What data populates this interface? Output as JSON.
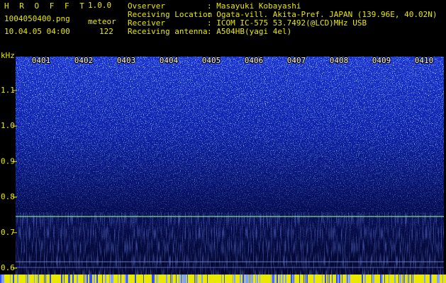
{
  "header": {
    "app_name": "H R O F F T",
    "version": "1.0.0",
    "file_name": "1004050400.png",
    "date_time": "10.04.05 04:00",
    "count_label": "meteor",
    "count": "122",
    "fields": [
      {
        "label": "Ovserver",
        "value": ": Masayuki Kobayashi"
      },
      {
        "label": "Receiving Location",
        "value": ": Ogata-vill. Akita-Pref. JAPAN (139.96E, 40.02N)"
      },
      {
        "label": "Receiver",
        "value": ": ICOM IC-575 53.7492(@LCD)MHz USB"
      },
      {
        "label": "Receiving antenna",
        "value": ": A504HB(yagi 4el)"
      }
    ]
  },
  "spectrogram": {
    "y_unit": "kHz",
    "y_labels": [
      "1.1",
      "1.0",
      "0.9",
      "0.8",
      "0.7",
      "0.6"
    ],
    "time_labels": [
      "0401",
      "0402",
      "0403",
      "0404",
      "0405",
      "0406",
      "0407",
      "0408",
      "0409",
      "0410"
    ]
  }
}
